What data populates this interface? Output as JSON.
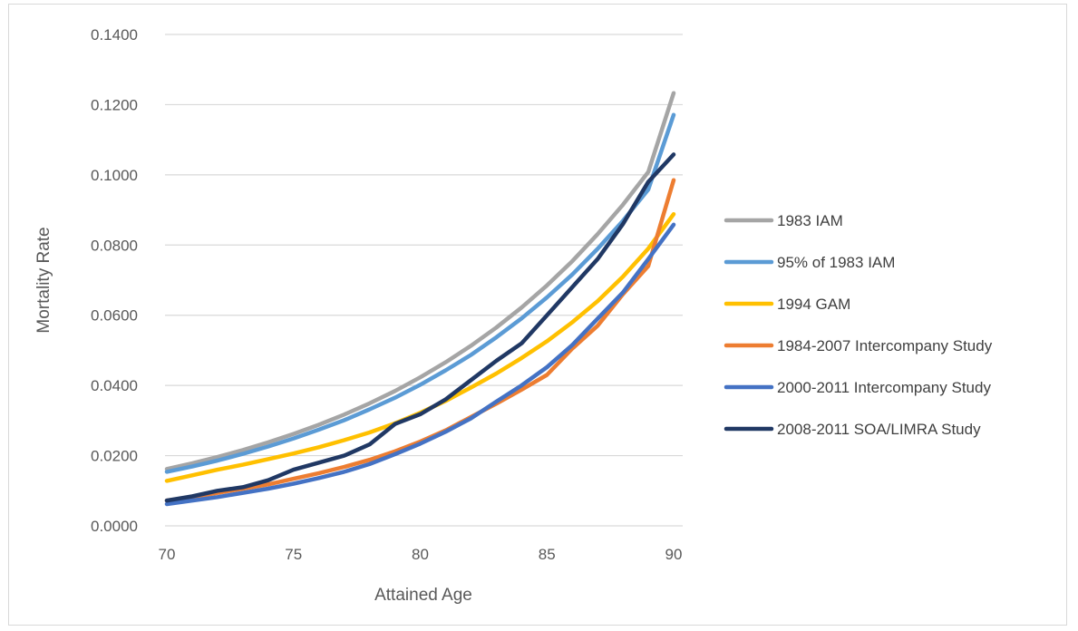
{
  "chart_data": {
    "type": "line",
    "xlabel": "Attained Age",
    "ylabel": "Mortality Rate",
    "xlim": [
      70,
      90
    ],
    "ylim": [
      0,
      0.14
    ],
    "x_ticks": [
      "70",
      "75",
      "80",
      "85",
      "90"
    ],
    "y_ticks": [
      "0.0000",
      "0.0200",
      "0.0400",
      "0.0600",
      "0.0800",
      "0.1000",
      "0.1200",
      "0.1400"
    ],
    "grid": "horizontal",
    "legend_position": "right",
    "x": [
      70,
      71,
      72,
      73,
      74,
      75,
      76,
      77,
      78,
      79,
      80,
      81,
      82,
      83,
      84,
      85,
      86,
      87,
      88,
      89,
      90
    ],
    "series": [
      {
        "name": "1983 IAM",
        "color": "#a5a5a5",
        "values": [
          0.0162,
          0.0178,
          0.0196,
          0.0216,
          0.0238,
          0.0262,
          0.0288,
          0.0317,
          0.0349,
          0.0384,
          0.0423,
          0.0466,
          0.0513,
          0.0565,
          0.0622,
          0.0685,
          0.0754,
          0.0831,
          0.0915,
          0.1008,
          0.1233
        ]
      },
      {
        "name": "95% of 1983 IAM",
        "color": "#5b9bd5",
        "values": [
          0.0154,
          0.0169,
          0.0186,
          0.0205,
          0.0226,
          0.0249,
          0.0274,
          0.0301,
          0.0332,
          0.0365,
          0.0402,
          0.0443,
          0.0487,
          0.0537,
          0.0591,
          0.0651,
          0.0716,
          0.0789,
          0.0869,
          0.0958,
          0.1171
        ]
      },
      {
        "name": "1994 GAM",
        "color": "#ffc000",
        "values": [
          0.0128,
          0.0144,
          0.016,
          0.0174,
          0.019,
          0.0206,
          0.0224,
          0.0244,
          0.0266,
          0.0292,
          0.0322,
          0.0356,
          0.0394,
          0.0434,
          0.0478,
          0.0526,
          0.058,
          0.064,
          0.071,
          0.079,
          0.0888
        ]
      },
      {
        "name": "1984-2007 Intercompany Study",
        "color": "#ed7d31",
        "values": [
          0.0072,
          0.0082,
          0.0094,
          0.0106,
          0.0118,
          0.0134,
          0.015,
          0.0168,
          0.0188,
          0.0212,
          0.024,
          0.0272,
          0.031,
          0.0348,
          0.0388,
          0.043,
          0.0505,
          0.057,
          0.066,
          0.074,
          0.0985
        ]
      },
      {
        "name": "2000-2011 Intercompany Study",
        "color": "#4472c4",
        "values": [
          0.0062,
          0.0072,
          0.0082,
          0.0094,
          0.0106,
          0.012,
          0.0136,
          0.0154,
          0.0176,
          0.0204,
          0.0234,
          0.0268,
          0.0306,
          0.0354,
          0.04,
          0.0452,
          0.0515,
          0.059,
          0.0665,
          0.076,
          0.0858
        ]
      },
      {
        "name": "2008-2011 SOA/LIMRA Study",
        "color": "#203864",
        "values": [
          0.0072,
          0.0084,
          0.01,
          0.011,
          0.013,
          0.016,
          0.018,
          0.02,
          0.0232,
          0.029,
          0.0318,
          0.036,
          0.0415,
          0.047,
          0.052,
          0.06,
          0.068,
          0.076,
          0.086,
          0.098,
          0.1058
        ]
      }
    ]
  }
}
